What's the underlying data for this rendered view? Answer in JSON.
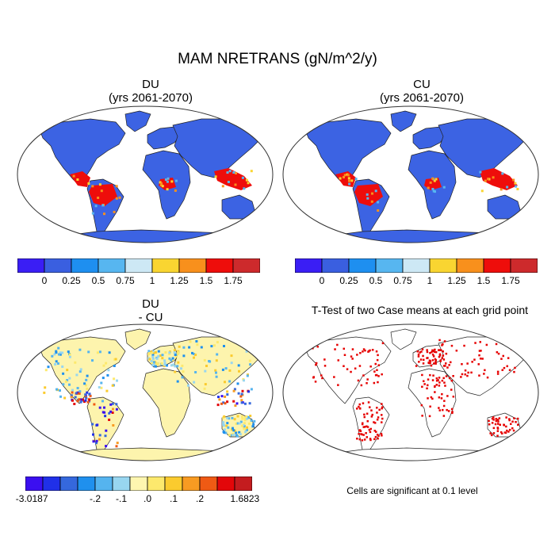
{
  "figure": {
    "title": "MAM NRETRANS (gN/m^2/y)"
  },
  "panels": [
    {
      "title": "DU",
      "subtitle": "(yrs 2061-2070)",
      "kind": "field"
    },
    {
      "title": "CU",
      "subtitle": "(yrs 2061-2070)",
      "kind": "field"
    },
    {
      "title": "DU",
      "subtitle": "- CU",
      "kind": "difference"
    },
    {
      "title": "T-Test of two Case means at each grid point",
      "subtitle": "",
      "kind": "significance"
    }
  ],
  "colorbar_top": {
    "colors": [
      "#3a1ef5",
      "#3a5fe0",
      "#1e8ff0",
      "#57b6f0",
      "#cde8f5",
      "#f9d531",
      "#f8901c",
      "#ee0d0b",
      "#cd2a2c"
    ],
    "labels": [
      "0",
      "0.25",
      "0.5",
      "0.75",
      "1",
      "1.25",
      "1.5",
      "1.75"
    ]
  },
  "colorbar_diff": {
    "colors": [
      "#3b0ff0",
      "#2030e8",
      "#3568dd",
      "#1f90ee",
      "#55b4ef",
      "#98d6f0",
      "#fef6b0",
      "#fde96d",
      "#fbcb2e",
      "#f89b22",
      "#ef5a14",
      "#e3070a",
      "#c41c1f"
    ],
    "labels": [
      "-3.0187",
      "-.2",
      "-.1",
      ".0",
      ".1",
      ".2",
      "1.6823"
    ]
  },
  "significance_note": "Cells are significant at 0.1 level",
  "palette": {
    "land_top": "#3c63e3",
    "land_diff": "#fdf4ad",
    "significant": "#e60000",
    "outline": "#222222"
  }
}
